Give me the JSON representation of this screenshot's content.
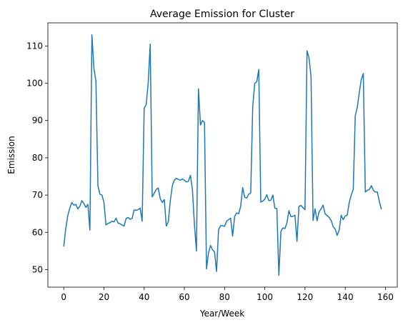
{
  "chart_data": {
    "type": "line",
    "title": "Average Emission for Cluster",
    "x_label": "Year/Week",
    "y_label": "Emission",
    "x": [
      0,
      1,
      2,
      3,
      4,
      5,
      6,
      7,
      8,
      9,
      10,
      11,
      12,
      13,
      14,
      15,
      16,
      17,
      18,
      19,
      20,
      21,
      22,
      23,
      24,
      25,
      26,
      27,
      28,
      29,
      30,
      31,
      32,
      33,
      34,
      35,
      36,
      37,
      38,
      39,
      40,
      41,
      42,
      43,
      44,
      45,
      46,
      47,
      48,
      49,
      50,
      51,
      52,
      53,
      54,
      55,
      56,
      57,
      58,
      59,
      60,
      61,
      62,
      63,
      64,
      65,
      66,
      67,
      68,
      69,
      70,
      71,
      72,
      73,
      74,
      75,
      76,
      77,
      78,
      79,
      80,
      81,
      82,
      83,
      84,
      85,
      86,
      87,
      88,
      89,
      90,
      91,
      92,
      93,
      94,
      95,
      96,
      97,
      98,
      99,
      100,
      101,
      102,
      103,
      104,
      105,
      106,
      107,
      108,
      109,
      110,
      111,
      112,
      113,
      114,
      115,
      116,
      117,
      118,
      119,
      120,
      121,
      122,
      123,
      124,
      125,
      126,
      127,
      128,
      129,
      130,
      131,
      132,
      133,
      134,
      135,
      136,
      137,
      138,
      139,
      140,
      141,
      142,
      143,
      144,
      145,
      146,
      147,
      148,
      149,
      150,
      151,
      152,
      153,
      154,
      155,
      156,
      157,
      158
    ],
    "series": [
      {
        "name": "Emission",
        "color": "#1f77b4",
        "values": [
          56.2,
          61,
          64.5,
          66.5,
          68,
          67.3,
          67.5,
          66.3,
          67,
          68.5,
          67.7,
          66.7,
          67.5,
          60.6,
          113,
          104,
          100.5,
          72.5,
          70.2,
          70,
          68,
          62,
          62.4,
          62.6,
          63,
          62.8,
          63.8,
          62.5,
          62.3,
          62,
          61.7,
          63.7,
          64,
          63.5,
          63.7,
          66,
          65.9,
          66.1,
          66.5,
          63,
          93.3,
          94.3,
          100,
          110.5,
          69.5,
          70.5,
          71.5,
          71.9,
          69,
          68,
          68.8,
          61.7,
          62.8,
          68.5,
          72.5,
          74,
          74.5,
          74.2,
          74,
          74.3,
          74,
          73.5,
          73.7,
          75.3,
          71.5,
          62,
          55,
          98.5,
          88.8,
          90,
          89.5,
          50.2,
          54.5,
          56.5,
          55.3,
          54.8,
          49.5,
          60.7,
          61.8,
          61.8,
          61.6,
          63,
          63.4,
          63.8,
          59,
          64.3,
          65.2,
          65,
          67,
          72,
          69.4,
          69.2,
          70.2,
          70.6,
          93.8,
          100,
          100.4,
          103.7,
          68.1,
          68.4,
          68.9,
          70.1,
          68.5,
          68.6,
          70,
          66.5,
          66.4,
          48.5,
          60.2,
          61.2,
          61,
          62.5,
          65.8,
          64.2,
          64.3,
          64.6,
          57.6,
          67,
          67.2,
          66.6,
          66.1,
          108.7,
          106.8,
          101.8,
          63.2,
          66.3,
          63.1,
          65.5,
          66.3,
          67.3,
          65,
          64.5,
          64,
          63.2,
          61.5,
          60.9,
          59.2,
          60.6,
          64.6,
          63.4,
          64.4,
          64.6,
          68,
          70,
          71.5,
          91.3,
          93.5,
          97.5,
          101,
          102.6,
          70.8,
          71.3,
          71.5,
          72.5,
          71.3,
          70.8,
          70.8,
          68.2,
          66.2
        ]
      }
    ],
    "xlim": [
      -7.9,
      165.9
    ],
    "xticks": [
      0,
      20,
      40,
      60,
      80,
      100,
      120,
      140,
      160
    ],
    "ylim": [
      45.3,
      116.2
    ],
    "yticks": [
      50,
      60,
      70,
      80,
      90,
      100,
      110
    ]
  }
}
